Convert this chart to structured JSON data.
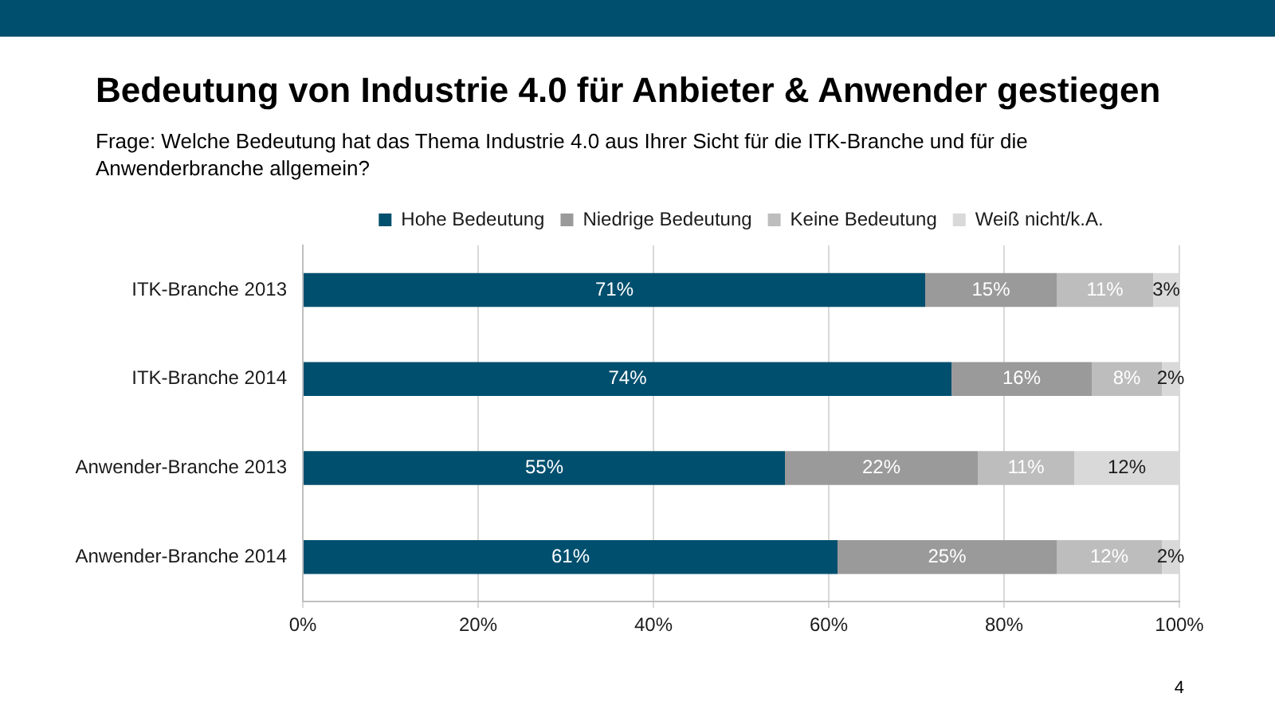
{
  "chart_data": {
    "type": "bar",
    "orientation": "horizontal",
    "stacked": true,
    "title": "Bedeutung von Industrie 4.0 für Anbieter & Anwender gestiegen",
    "subtitle": "Frage: Welche Bedeutung hat das Thema Industrie 4.0 aus Ihrer Sicht für die ITK-Branche und für die Anwenderbranche allgemein?",
    "categories": [
      "ITK-Branche 2013",
      "ITK-Branche 2014",
      "Anwender-Branche 2013",
      "Anwender-Branche 2014"
    ],
    "series": [
      {
        "name": "Hohe Bedeutung",
        "color": "#004f6e",
        "values": [
          71,
          74,
          55,
          61
        ],
        "value_labels": [
          "71%",
          "74%",
          "55%",
          "61%"
        ]
      },
      {
        "name": "Niedrige Bedeutung",
        "color": "#9a9a9a",
        "values": [
          15,
          16,
          22,
          25
        ],
        "value_labels": [
          "15%",
          "16%",
          "22%",
          "25%"
        ]
      },
      {
        "name": "Keine Bedeutung",
        "color": "#bdbdbd",
        "values": [
          11,
          8,
          11,
          12
        ],
        "value_labels": [
          "11%",
          "8%",
          "11%",
          "12%"
        ]
      },
      {
        "name": "Weiß nicht/k.A.",
        "color": "#d9d9d9",
        "values": [
          3,
          2,
          12,
          2
        ],
        "value_labels": [
          "3%",
          "2%",
          "12%",
          "2%"
        ]
      }
    ],
    "xlim": [
      0,
      100
    ],
    "xticks": [
      {
        "value": 0,
        "label": "0%"
      },
      {
        "value": 20,
        "label": "20%"
      },
      {
        "value": 40,
        "label": "40%"
      },
      {
        "value": 60,
        "label": "60%"
      },
      {
        "value": 80,
        "label": "80%"
      },
      {
        "value": 100,
        "label": "100%"
      }
    ],
    "grid": "x",
    "legend": "top",
    "annotations": [
      "4"
    ]
  }
}
